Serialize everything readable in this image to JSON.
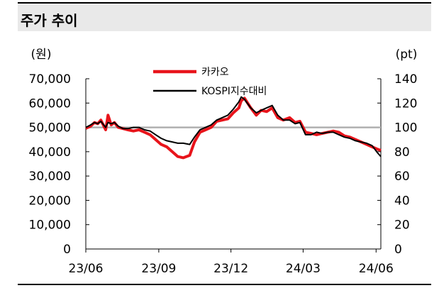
{
  "header": {
    "title": "주가 추이"
  },
  "chart_data": {
    "type": "line",
    "title": "주가 추이",
    "y_left_unit": "(원)",
    "y_right_unit": "(pt)",
    "ylim_left": [
      0,
      70000
    ],
    "ylim_right": [
      0,
      140
    ],
    "y_left_ticks": [
      "0",
      "10,000",
      "20,000",
      "30,000",
      "40,000",
      "50,000",
      "60,000",
      "70,000"
    ],
    "y_right_ticks": [
      "0",
      "20",
      "40",
      "60",
      "80",
      "100",
      "120",
      "140"
    ],
    "x_ticks": [
      "23/06",
      "23/09",
      "23/12",
      "24/03",
      "24/06"
    ],
    "reference_line": {
      "value": 100,
      "axis": "right",
      "color": "#b0b0b0"
    },
    "legend": {
      "position": "top-center"
    },
    "series": [
      {
        "name": "카카오",
        "axis": "left",
        "color": "#e8141b",
        "x": [
          "2023-06-01",
          "2023-06-07",
          "2023-06-12",
          "2023-06-16",
          "2023-06-20",
          "2023-06-26",
          "2023-06-29",
          "2023-07-03",
          "2023-07-07",
          "2023-07-12",
          "2023-07-18",
          "2023-07-24",
          "2023-07-31",
          "2023-08-07",
          "2023-08-14",
          "2023-08-21",
          "2023-08-28",
          "2023-09-04",
          "2023-09-11",
          "2023-09-18",
          "2023-09-25",
          "2023-10-02",
          "2023-10-10",
          "2023-10-16",
          "2023-10-23",
          "2023-10-30",
          "2023-11-06",
          "2023-11-13",
          "2023-11-20",
          "2023-11-27",
          "2023-12-04",
          "2023-12-11",
          "2023-12-14",
          "2023-12-18",
          "2023-12-26",
          "2024-01-02",
          "2024-01-08",
          "2024-01-15",
          "2024-01-22",
          "2024-01-29",
          "2024-02-05",
          "2024-02-13",
          "2024-02-20",
          "2024-02-26",
          "2024-03-04",
          "2024-03-11",
          "2024-03-18",
          "2024-03-25",
          "2024-04-01",
          "2024-04-08",
          "2024-04-15",
          "2024-04-22",
          "2024-04-29",
          "2024-05-06",
          "2024-05-13",
          "2024-05-20",
          "2024-05-27",
          "2024-06-03",
          "2024-06-07"
        ],
        "values": [
          49600,
          50500,
          52000,
          51500,
          53000,
          49000,
          55000,
          51000,
          52000,
          50000,
          49500,
          49000,
          48500,
          49000,
          48000,
          47000,
          45000,
          43000,
          42000,
          40000,
          38000,
          37500,
          38500,
          44000,
          48000,
          49000,
          50000,
          52500,
          53000,
          53500,
          56000,
          58000,
          61000,
          62000,
          58000,
          55000,
          57000,
          56500,
          58000,
          54000,
          53000,
          54000,
          52000,
          52500,
          48000,
          47500,
          47000,
          47500,
          48000,
          48500,
          48000,
          46500,
          46000,
          45000,
          44000,
          43000,
          42000,
          41000,
          40500
        ]
      },
      {
        "name": "KOSPI지수대비",
        "axis": "right",
        "color": "#000000",
        "x": [
          "2023-06-01",
          "2023-06-07",
          "2023-06-12",
          "2023-06-16",
          "2023-06-20",
          "2023-06-26",
          "2023-06-29",
          "2023-07-03",
          "2023-07-07",
          "2023-07-12",
          "2023-07-18",
          "2023-07-24",
          "2023-07-31",
          "2023-08-07",
          "2023-08-14",
          "2023-08-21",
          "2023-08-28",
          "2023-09-04",
          "2023-09-11",
          "2023-09-18",
          "2023-09-25",
          "2023-10-02",
          "2023-10-10",
          "2023-10-16",
          "2023-10-23",
          "2023-10-30",
          "2023-11-06",
          "2023-11-13",
          "2023-11-20",
          "2023-11-27",
          "2023-12-04",
          "2023-12-11",
          "2023-12-14",
          "2023-12-18",
          "2023-12-26",
          "2024-01-02",
          "2024-01-08",
          "2024-01-15",
          "2024-01-22",
          "2024-01-29",
          "2024-02-05",
          "2024-02-13",
          "2024-02-20",
          "2024-02-26",
          "2024-03-04",
          "2024-03-11",
          "2024-03-18",
          "2024-03-25",
          "2024-04-01",
          "2024-04-08",
          "2024-04-15",
          "2024-04-22",
          "2024-04-29",
          "2024-05-06",
          "2024-05-13",
          "2024-05-20",
          "2024-05-27",
          "2024-06-03",
          "2024-06-07"
        ],
        "values": [
          100,
          102,
          104,
          103,
          105,
          100,
          104,
          103,
          104,
          101,
          99,
          99,
          100,
          100,
          98,
          97,
          94,
          91,
          89,
          88,
          87,
          87,
          86,
          92,
          98,
          100,
          102,
          106,
          108,
          110,
          115,
          121,
          125,
          123,
          116,
          112,
          114,
          116,
          118,
          110,
          106,
          106,
          103,
          104,
          94,
          94,
          96,
          95,
          96,
          96,
          94,
          92,
          91,
          89,
          88,
          87,
          85,
          79,
          76
        ]
      }
    ]
  }
}
